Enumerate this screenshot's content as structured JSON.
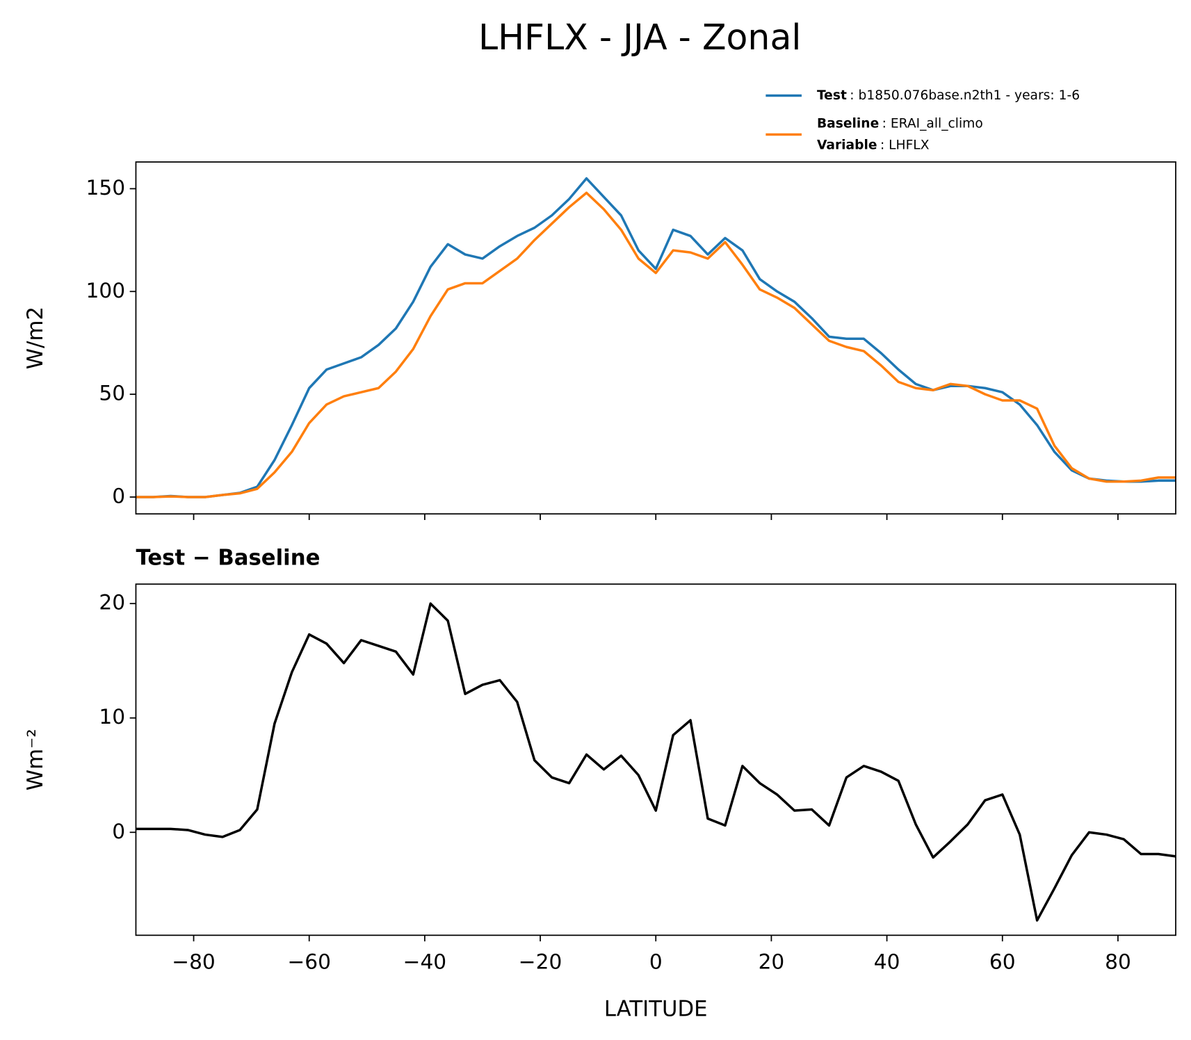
{
  "title": "LHFLX - JJA - Zonal",
  "chart_data": [
    {
      "type": "line",
      "ylabel": "W/m2",
      "x": [
        -90,
        -87,
        -84,
        -81,
        -78,
        -75,
        -72,
        -69,
        -66,
        -63,
        -60,
        -57,
        -54,
        -51,
        -48,
        -45,
        -42,
        -39,
        -36,
        -33,
        -30,
        -27,
        -24,
        -21,
        -18,
        -15,
        -12,
        -9,
        -6,
        -3,
        0,
        3,
        6,
        9,
        12,
        15,
        18,
        21,
        24,
        27,
        30,
        33,
        36,
        39,
        42,
        45,
        48,
        51,
        54,
        57,
        60,
        63,
        66,
        69,
        72,
        75,
        78,
        81,
        84,
        87,
        90
      ],
      "series": [
        {
          "name": "Test",
          "detail": ": b1850.076base.n2th1 - years: 1-6",
          "color": "#1f77b4",
          "values": [
            0,
            0,
            0.5,
            0,
            0,
            1,
            2,
            5,
            18,
            35,
            53,
            62,
            65,
            68,
            74,
            82,
            95,
            112,
            123,
            118,
            116,
            122,
            127,
            131,
            137,
            145,
            155,
            146,
            137,
            120,
            111,
            130,
            127,
            118,
            126,
            120,
            106,
            100,
            95,
            87,
            78,
            77,
            77,
            70,
            62,
            55,
            52,
            54,
            54,
            53,
            51,
            45,
            35,
            22,
            13,
            9,
            8,
            7.5,
            7.5,
            8,
            8
          ]
        },
        {
          "name": "Baseline",
          "detail": ": ERAI_all_climo",
          "extra_name": "Variable",
          "extra_detail": ": LHFLX",
          "color": "#ff7f0e",
          "values": [
            0,
            0,
            0.3,
            0,
            0,
            1,
            1.8,
            4,
            12,
            22,
            36,
            45,
            49,
            51,
            53,
            61,
            72,
            88,
            101,
            104,
            104,
            110,
            116,
            125,
            133,
            141,
            148,
            140,
            130,
            116,
            109,
            120,
            119,
            116,
            124,
            113,
            101,
            97,
            92,
            84,
            76,
            73,
            71,
            64,
            56,
            53,
            52,
            55,
            54,
            50,
            47,
            47,
            43,
            25,
            14,
            9,
            7.5,
            7.5,
            8,
            9.5,
            9.5
          ]
        }
      ],
      "xlim": [
        -90,
        90
      ],
      "xticks": [
        -80,
        -60,
        -40,
        -20,
        0,
        20,
        40,
        60,
        80
      ],
      "ylim": [
        -8.2,
        163
      ],
      "yticks": [
        0,
        50,
        100,
        150
      ]
    },
    {
      "type": "line",
      "title": "Test − Baseline",
      "ylabel": "Wm⁻²",
      "xlabel": "LATITUDE",
      "x": [
        -90,
        -87,
        -84,
        -81,
        -78,
        -75,
        -72,
        -69,
        -66,
        -63,
        -60,
        -57,
        -54,
        -51,
        -48,
        -45,
        -42,
        -39,
        -36,
        -33,
        -30,
        -27,
        -24,
        -21,
        -18,
        -15,
        -12,
        -9,
        -6,
        -3,
        0,
        3,
        6,
        9,
        12,
        15,
        18,
        21,
        24,
        27,
        30,
        33,
        36,
        39,
        42,
        45,
        48,
        51,
        54,
        57,
        60,
        63,
        66,
        69,
        72,
        75,
        78,
        81,
        84,
        87,
        90
      ],
      "series": [
        {
          "color": "#000000",
          "values": [
            0.3,
            0.3,
            0.3,
            0.2,
            -0.2,
            -0.4,
            0.2,
            2,
            9.5,
            14,
            17.3,
            16.5,
            14.8,
            16.8,
            16.3,
            15.8,
            13.8,
            20,
            18.5,
            12.1,
            12.9,
            13.3,
            11.4,
            6.3,
            4.8,
            4.3,
            6.8,
            5.5,
            6.7,
            5,
            1.9,
            8.5,
            9.8,
            1.2,
            0.6,
            5.8,
            4.3,
            3.3,
            1.9,
            2,
            0.6,
            4.8,
            5.8,
            5.3,
            4.5,
            0.7,
            -2.2,
            -0.8,
            0.7,
            2.8,
            3.3,
            -0.2,
            -7.7,
            -4.9,
            -2,
            0,
            -0.2,
            -0.6,
            -1.9,
            -1.9,
            -2.1
          ]
        }
      ],
      "xlim": [
        -90,
        90
      ],
      "xticks": [
        {
          "value": -80,
          "label": "−80"
        },
        {
          "value": -60,
          "label": "−60"
        },
        {
          "value": -40,
          "label": "−40"
        },
        {
          "value": -20,
          "label": "−20"
        },
        0,
        20,
        40,
        60,
        80
      ],
      "ylim": [
        -9,
        21.7
      ],
      "yticks": [
        0,
        10,
        20
      ]
    }
  ]
}
